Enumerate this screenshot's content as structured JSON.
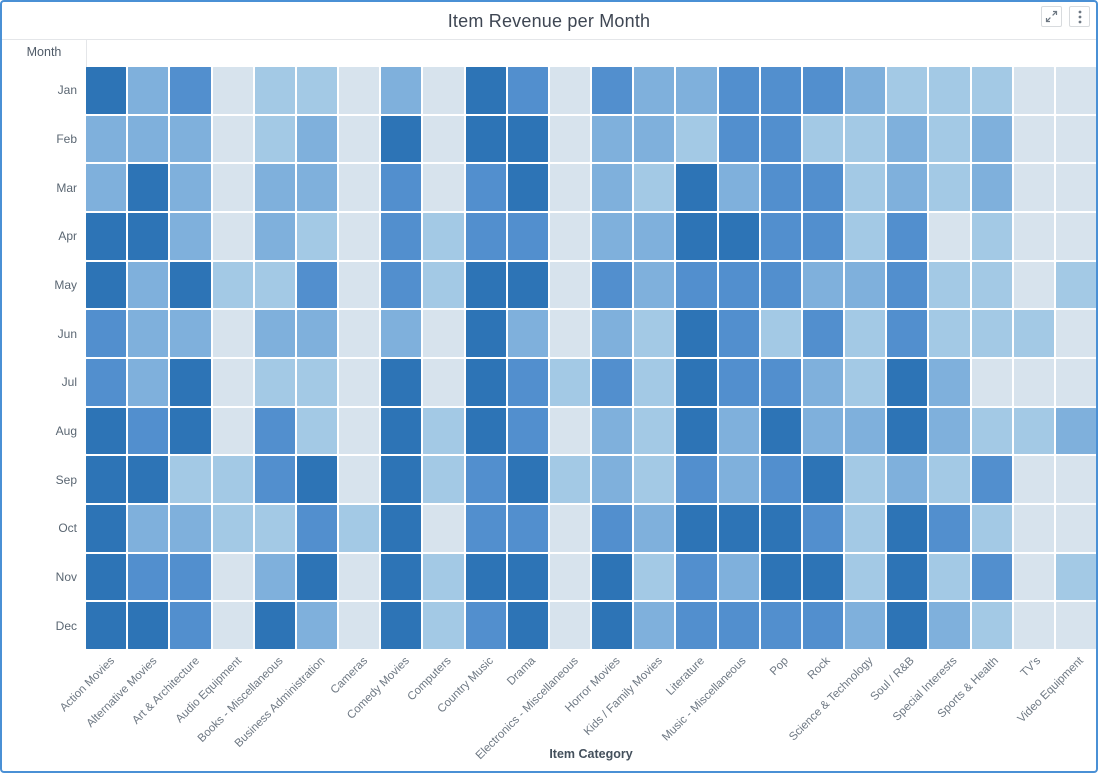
{
  "widget": {
    "title": "Item Revenue per Month"
  },
  "axes": {
    "y_title": "Month",
    "x_title": "Item Category"
  },
  "colors": {
    "border": "#4a90d5",
    "header_divider": "#e4e6e9",
    "title_text": "#3e4653",
    "tick_text": "#6e7883",
    "label_text": "#505b68"
  },
  "chart_data": {
    "type": "heatmap",
    "title": "Item Revenue per Month",
    "xlabel": "Item Category",
    "ylabel": "Month",
    "x_categories": [
      "Action Movies",
      "Alternative Movies",
      "Art & Architecture",
      "Audio Equipment",
      "Books - Miscellaneous",
      "Business Administration",
      "Cameras",
      "Comedy Movies",
      "Computers",
      "Country Music",
      "Drama",
      "Electronics - Miscellaneous",
      "Horror Movies",
      "Kids / Family Movies",
      "Literature",
      "Music - Miscellaneous",
      "Pop",
      "Rock",
      "Science & Technology",
      "Soul / R&B",
      "Special Interests",
      "Sports & Health",
      "TV's",
      "Video Equipment"
    ],
    "y_categories": [
      "Jan",
      "Feb",
      "Mar",
      "Apr",
      "May",
      "Jun",
      "Jul",
      "Aug",
      "Sep",
      "Oct",
      "Nov",
      "Dec"
    ],
    "value_scale": "relative revenue intensity read from cell shading: 1 = lightest (lowest) to 5 = darkest (highest); no numeric labels shown in chart",
    "palette": [
      "#d7e3ed",
      "#a3c9e5",
      "#7fb0dc",
      "#528fce",
      "#2d74b6"
    ],
    "grid_gap_color": "#ffffff",
    "legend": "none",
    "values": [
      [
        5,
        3,
        4,
        1,
        2,
        2,
        1,
        3,
        1,
        5,
        4,
        1,
        4,
        3,
        3,
        4,
        4,
        4,
        3,
        2,
        2,
        2,
        1,
        1
      ],
      [
        3,
        3,
        3,
        1,
        2,
        3,
        1,
        5,
        1,
        5,
        5,
        1,
        3,
        3,
        2,
        4,
        4,
        2,
        2,
        3,
        2,
        3,
        1,
        1
      ],
      [
        3,
        5,
        3,
        1,
        3,
        3,
        1,
        4,
        1,
        4,
        5,
        1,
        3,
        2,
        5,
        3,
        4,
        4,
        2,
        3,
        2,
        3,
        1,
        1
      ],
      [
        5,
        5,
        3,
        1,
        3,
        2,
        1,
        4,
        2,
        4,
        4,
        1,
        3,
        3,
        5,
        5,
        4,
        4,
        2,
        4,
        1,
        2,
        1,
        1
      ],
      [
        5,
        3,
        5,
        2,
        2,
        4,
        1,
        4,
        2,
        5,
        5,
        1,
        4,
        3,
        4,
        4,
        4,
        3,
        3,
        4,
        2,
        2,
        1,
        2
      ],
      [
        4,
        3,
        3,
        1,
        3,
        3,
        1,
        3,
        1,
        5,
        3,
        1,
        3,
        2,
        5,
        4,
        2,
        4,
        2,
        4,
        2,
        2,
        2,
        1
      ],
      [
        4,
        3,
        5,
        1,
        2,
        2,
        1,
        5,
        1,
        5,
        4,
        2,
        4,
        2,
        5,
        4,
        4,
        3,
        2,
        5,
        3,
        1,
        1,
        1
      ],
      [
        5,
        4,
        5,
        1,
        4,
        2,
        1,
        5,
        2,
        5,
        4,
        1,
        3,
        2,
        5,
        3,
        5,
        3,
        3,
        5,
        3,
        2,
        2,
        3
      ],
      [
        5,
        5,
        2,
        2,
        4,
        5,
        1,
        5,
        2,
        4,
        5,
        2,
        3,
        2,
        4,
        3,
        4,
        5,
        2,
        3,
        2,
        4,
        1,
        1
      ],
      [
        5,
        3,
        3,
        2,
        2,
        4,
        2,
        5,
        1,
        4,
        4,
        1,
        4,
        3,
        5,
        5,
        5,
        4,
        2,
        5,
        4,
        2,
        1,
        1
      ],
      [
        5,
        4,
        4,
        1,
        3,
        5,
        1,
        5,
        2,
        5,
        5,
        1,
        5,
        2,
        4,
        3,
        5,
        5,
        2,
        5,
        2,
        4,
        1,
        2
      ],
      [
        5,
        5,
        4,
        1,
        5,
        3,
        1,
        5,
        2,
        4,
        5,
        1,
        5,
        3,
        4,
        4,
        4,
        4,
        3,
        5,
        3,
        2,
        1,
        1
      ]
    ]
  }
}
